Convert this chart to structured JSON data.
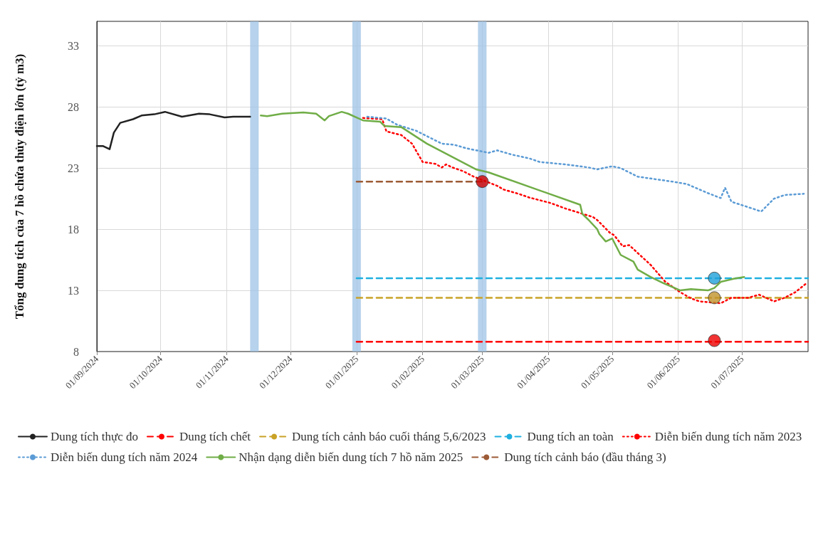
{
  "chart_data": {
    "type": "line",
    "ylabel": "Tổng dung tích của 7 hồ chứa thủy điện lớn (tỷ m3)",
    "xlim": [
      "2024-09-01",
      "2025-08-01"
    ],
    "xticks": [
      {
        "value": "2024-09-01",
        "label": "01/09/2024"
      },
      {
        "value": "2024-10-01",
        "label": "01/10/2024"
      },
      {
        "value": "2024-11-01",
        "label": "01/11/2024"
      },
      {
        "value": "2024-12-01",
        "label": "01/12/2024"
      },
      {
        "value": "2025-01-01",
        "label": "01/01/2025"
      },
      {
        "value": "2025-02-01",
        "label": "01/02/2025"
      },
      {
        "value": "2025-03-01",
        "label": "01/03/2025"
      },
      {
        "value": "2025-04-01",
        "label": "01/04/2025"
      },
      {
        "value": "2025-05-01",
        "label": "01/05/2025"
      },
      {
        "value": "2025-06-01",
        "label": "01/06/2025"
      },
      {
        "value": "2025-07-01",
        "label": "01/07/2025"
      }
    ],
    "ylim": [
      8,
      35
    ],
    "yticks": [
      8,
      13,
      18,
      23,
      28,
      33
    ],
    "grid": true,
    "legend": "bottom",
    "bands": [
      {
        "axis": "x",
        "from": "2024-11-12",
        "to": "2024-11-16",
        "color": "#9dc3e6"
      },
      {
        "axis": "x",
        "from": "2024-12-30",
        "to": "2025-01-03",
        "color": "#9dc3e6"
      },
      {
        "axis": "x",
        "from": "2025-02-27",
        "to": "2025-03-03",
        "color": "#9dc3e6"
      }
    ],
    "series": [
      {
        "name": "Dung tích thực đo",
        "color": "#222222",
        "line_style": "solid",
        "x": [
          "2024-09-01",
          "2024-09-04",
          "2024-09-07",
          "2024-09-09",
          "2024-09-12",
          "2024-09-18",
          "2024-09-22",
          "2024-09-28",
          "2024-10-03",
          "2024-10-11",
          "2024-10-19",
          "2024-10-24",
          "2024-10-31",
          "2024-11-04",
          "2024-11-12"
        ],
        "values": [
          24.8,
          24.8,
          24.55,
          25.9,
          26.7,
          27.0,
          27.3,
          27.4,
          27.6,
          27.2,
          27.45,
          27.4,
          27.15,
          27.2,
          27.2
        ]
      },
      {
        "name": "Dung tích chết",
        "color": "#ff0000",
        "line_style": "dashed",
        "x": [
          "2025-01-01",
          "2025-08-01"
        ],
        "values": [
          8.8,
          8.8
        ]
      },
      {
        "name": "Dung tích cảnh báo cuối tháng 5,6/2023",
        "color": "#c9a227",
        "line_style": "dashed",
        "x": [
          "2025-01-01",
          "2025-08-01"
        ],
        "values": [
          12.4,
          12.4
        ]
      },
      {
        "name": "Dung tích an toàn",
        "color": "#1fb0e0",
        "line_style": "dashed",
        "x": [
          "2025-01-01",
          "2025-08-01"
        ],
        "values": [
          14.0,
          14.0
        ]
      },
      {
        "name": "Diễn biến dung tích năm 2023",
        "color": "#ff0000",
        "line_style": "dotted",
        "x": [
          "2025-01-04",
          "2025-01-13",
          "2025-01-15",
          "2025-01-22",
          "2025-01-27",
          "2025-02-01",
          "2025-02-07",
          "2025-02-10",
          "2025-02-12",
          "2025-02-15",
          "2025-02-20",
          "2025-02-25",
          "2025-03-08",
          "2025-03-11",
          "2025-03-18",
          "2025-03-23",
          "2025-04-02",
          "2025-04-09",
          "2025-04-22",
          "2025-04-24",
          "2025-04-30",
          "2025-05-02",
          "2025-05-06",
          "2025-05-09",
          "2025-05-19",
          "2025-05-26",
          "2025-06-02",
          "2025-06-07",
          "2025-06-11",
          "2025-06-21",
          "2025-06-26",
          "2025-07-04",
          "2025-07-09",
          "2025-07-16",
          "2025-07-21",
          "2025-07-26",
          "2025-07-31"
        ],
        "values": [
          27.1,
          27.0,
          26.0,
          25.7,
          25.0,
          23.5,
          23.35,
          23.05,
          23.3,
          23.05,
          22.75,
          22.3,
          21.55,
          21.25,
          20.9,
          20.6,
          20.15,
          19.7,
          19.0,
          18.75,
          17.7,
          17.5,
          16.6,
          16.7,
          15.1,
          13.7,
          12.85,
          12.35,
          12.1,
          11.95,
          12.4,
          12.4,
          12.65,
          12.1,
          12.4,
          12.85,
          13.55
        ]
      },
      {
        "name": "Diễn biến dung tích năm 2024",
        "color": "#5b9bd5",
        "line_style": "dotted",
        "x": [
          "2025-01-06",
          "2025-01-15",
          "2025-01-20",
          "2025-01-29",
          "2025-02-10",
          "2025-02-16",
          "2025-02-22",
          "2025-03-04",
          "2025-03-08",
          "2025-03-15",
          "2025-03-23",
          "2025-03-28",
          "2025-04-09",
          "2025-04-20",
          "2025-04-24",
          "2025-05-01",
          "2025-05-05",
          "2025-05-13",
          "2025-05-19",
          "2025-05-29",
          "2025-06-05",
          "2025-06-15",
          "2025-06-21",
          "2025-06-23",
          "2025-06-26",
          "2025-07-04",
          "2025-07-10",
          "2025-07-16",
          "2025-07-21",
          "2025-07-30"
        ],
        "values": [
          27.2,
          27.05,
          26.55,
          26.05,
          25.0,
          24.9,
          24.6,
          24.25,
          24.45,
          24.1,
          23.8,
          23.5,
          23.3,
          23.05,
          22.9,
          23.15,
          23.0,
          22.3,
          22.15,
          21.9,
          21.7,
          20.95,
          20.55,
          21.4,
          20.25,
          19.8,
          19.45,
          20.5,
          20.8,
          20.9
        ]
      },
      {
        "name": "Nhận dạng diễn biến dung tích 7 hồ năm 2025",
        "color": "#70ad47",
        "line_style": "solid",
        "x": [
          "2024-11-17",
          "2024-11-20",
          "2024-11-27",
          "2024-12-07",
          "2024-12-13",
          "2024-12-17",
          "2024-12-19",
          "2024-12-25",
          "2024-12-28",
          "2025-01-04",
          "2025-01-12",
          "2025-01-14",
          "2025-01-22",
          "2025-02-03",
          "2025-02-26",
          "2025-03-04",
          "2025-04-16",
          "2025-04-17",
          "2025-04-20",
          "2025-04-24",
          "2025-04-25",
          "2025-04-28",
          "2025-05-01",
          "2025-05-05",
          "2025-05-11",
          "2025-05-13",
          "2025-05-19",
          "2025-05-25",
          "2025-06-02",
          "2025-06-07",
          "2025-06-15",
          "2025-06-18",
          "2025-06-21",
          "2025-06-27",
          "2025-07-02"
        ],
        "values": [
          27.3,
          27.25,
          27.45,
          27.55,
          27.45,
          26.9,
          27.25,
          27.6,
          27.45,
          26.9,
          26.8,
          26.45,
          26.35,
          25.0,
          22.9,
          22.65,
          20.0,
          19.25,
          18.75,
          18.0,
          17.6,
          17.0,
          17.25,
          15.9,
          15.35,
          14.7,
          14.1,
          13.6,
          13.0,
          13.1,
          13.0,
          13.2,
          13.7,
          13.95,
          14.1
        ]
      },
      {
        "name": "Dung tích cảnh báo (đầu tháng 3)",
        "color": "#9c5b36",
        "line_style": "dashed",
        "x": [
          "2025-01-01",
          "2025-03-01"
        ],
        "values": [
          21.9,
          21.9
        ]
      },
      {
        "type": "scatter",
        "x": [
          "2025-03-01",
          "2025-06-18",
          "2025-06-18",
          "2025-06-18"
        ],
        "values": [
          21.9,
          14.0,
          12.4,
          8.9
        ],
        "colors": [
          "#d00000",
          "#1fa0d8",
          "#c0922a",
          "#ee0000"
        ]
      }
    ]
  }
}
